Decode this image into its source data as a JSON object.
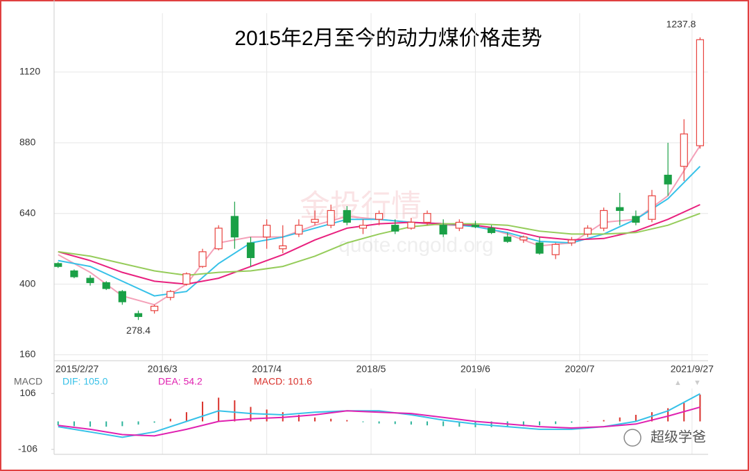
{
  "chart_data": [
    {
      "type": "candlestick",
      "title": "2015年2月至今的动力煤价格走势",
      "x": [
        0,
        2,
        4,
        6,
        8,
        10,
        12,
        14,
        16,
        18,
        20,
        22,
        24,
        26,
        28,
        30,
        32,
        34,
        36,
        38,
        40,
        42,
        44,
        46,
        48,
        50,
        52,
        54,
        56,
        58,
        60,
        62,
        64,
        66,
        68,
        70,
        72,
        74,
        76,
        78,
        80
      ],
      "open": [
        470,
        445,
        420,
        405,
        375,
        300,
        310,
        355,
        400,
        460,
        520,
        630,
        540,
        560,
        520,
        570,
        610,
        600,
        650,
        590,
        620,
        600,
        590,
        610,
        600,
        590,
        600,
        590,
        560,
        550,
        540,
        500,
        540,
        570,
        590,
        660,
        630,
        620,
        770,
        800,
        870
      ],
      "high": [
        475,
        450,
        430,
        410,
        380,
        310,
        330,
        380,
        440,
        520,
        600,
        680,
        560,
        620,
        600,
        620,
        650,
        670,
        665,
        620,
        650,
        620,
        625,
        650,
        620,
        620,
        615,
        600,
        575,
        565,
        560,
        540,
        560,
        600,
        660,
        710,
        650,
        720,
        880,
        960,
        1237.8
      ],
      "low": [
        455,
        420,
        395,
        380,
        330,
        278.4,
        300,
        345,
        395,
        455,
        515,
        520,
        460,
        520,
        505,
        560,
        600,
        590,
        600,
        570,
        600,
        570,
        585,
        600,
        560,
        580,
        590,
        570,
        540,
        540,
        500,
        485,
        530,
        560,
        580,
        600,
        600,
        610,
        700,
        750,
        860
      ],
      "close": [
        460,
        425,
        405,
        385,
        340,
        290,
        325,
        375,
        435,
        510,
        590,
        560,
        490,
        600,
        530,
        600,
        620,
        650,
        610,
        600,
        640,
        580,
        610,
        640,
        570,
        610,
        595,
        575,
        545,
        560,
        505,
        535,
        550,
        590,
        650,
        650,
        610,
        700,
        740,
        910,
        1230
      ],
      "up_color": "#e8413d",
      "down_color": "#1aa046",
      "series": [
        {
          "color": "#f4a0b8",
          "x": [
            0,
            4,
            8,
            12,
            16,
            20,
            24,
            28,
            32,
            36,
            40,
            44,
            48,
            52,
            56,
            60,
            64,
            68,
            72,
            76,
            80
          ],
          "values": [
            500,
            440,
            360,
            330,
            400,
            540,
            560,
            560,
            600,
            630,
            620,
            610,
            600,
            600,
            570,
            530,
            540,
            610,
            620,
            700,
            870
          ]
        },
        {
          "color": "#36c1e8",
          "x": [
            0,
            4,
            8,
            12,
            16,
            20,
            24,
            28,
            32,
            36,
            40,
            44,
            48,
            52,
            56,
            60,
            64,
            68,
            72,
            76,
            80
          ],
          "values": [
            480,
            460,
            410,
            360,
            375,
            470,
            540,
            560,
            590,
            620,
            620,
            610,
            605,
            595,
            575,
            545,
            540,
            570,
            620,
            690,
            800
          ]
        },
        {
          "color": "#e8207e",
          "x": [
            0,
            4,
            8,
            12,
            16,
            20,
            24,
            28,
            32,
            36,
            40,
            44,
            48,
            52,
            56,
            60,
            64,
            68,
            72,
            76,
            80
          ],
          "values": [
            510,
            480,
            440,
            410,
            400,
            420,
            460,
            500,
            550,
            590,
            605,
            610,
            605,
            600,
            585,
            560,
            550,
            555,
            580,
            620,
            670
          ]
        },
        {
          "color": "#95cc5a",
          "x": [
            0,
            4,
            8,
            12,
            16,
            20,
            24,
            28,
            32,
            36,
            40,
            44,
            48,
            52,
            56,
            60,
            64,
            68,
            72,
            76,
            80
          ],
          "values": [
            510,
            495,
            470,
            445,
            430,
            440,
            445,
            460,
            495,
            540,
            570,
            595,
            605,
            605,
            600,
            580,
            570,
            570,
            575,
            600,
            640
          ]
        }
      ],
      "ylim": [
        140,
        1320
      ],
      "yticks": [
        160,
        400,
        640,
        880,
        1120
      ],
      "xlim": [
        -0.5,
        81
      ],
      "xticks": [
        {
          "value": 0,
          "label": "2015/2/27"
        },
        {
          "value": 13,
          "label": "2016/3"
        },
        {
          "value": 26,
          "label": "2017/4"
        },
        {
          "value": 39,
          "label": "2018/5"
        },
        {
          "value": 52,
          "label": "2019/6"
        },
        {
          "value": 65,
          "label": "2020/7"
        },
        {
          "value": 79,
          "label": "2021/9/27"
        }
      ],
      "grid": true,
      "watermark": [
        "金投行情",
        "quote.cngold.org"
      ]
    },
    {
      "type": "macd",
      "label": "MACD",
      "x": [
        0,
        2,
        4,
        6,
        8,
        10,
        12,
        14,
        16,
        18,
        20,
        22,
        24,
        26,
        28,
        30,
        32,
        34,
        36,
        38,
        40,
        42,
        44,
        46,
        48,
        50,
        52,
        54,
        56,
        58,
        60,
        62,
        64,
        66,
        68,
        70,
        72,
        74,
        76,
        78,
        80
      ],
      "values": [
        -15,
        -18,
        -20,
        -20,
        -18,
        -12,
        -5,
        10,
        35,
        75,
        90,
        80,
        55,
        45,
        35,
        25,
        15,
        10,
        5,
        -3,
        -8,
        -10,
        -12,
        -15,
        -18,
        -20,
        -22,
        -22,
        -20,
        -18,
        -15,
        -10,
        -5,
        0,
        5,
        15,
        25,
        35,
        50,
        70,
        101.6
      ],
      "up_color": "#d9312b",
      "down_color": "#2bb39a",
      "series": [
        {
          "name": "DIF: 105.0",
          "color": "#36c1e8",
          "x": [
            0,
            4,
            8,
            12,
            16,
            20,
            24,
            28,
            32,
            36,
            40,
            44,
            48,
            52,
            56,
            60,
            64,
            68,
            72,
            76,
            80
          ],
          "values": [
            -20,
            -40,
            -60,
            -40,
            0,
            40,
            30,
            25,
            35,
            40,
            40,
            25,
            5,
            -10,
            -20,
            -30,
            -30,
            -20,
            0,
            40,
            105
          ]
        },
        {
          "name": "DEA: 54.2",
          "color": "#e020b0",
          "x": [
            0,
            4,
            8,
            12,
            16,
            20,
            24,
            28,
            32,
            36,
            40,
            44,
            48,
            52,
            56,
            60,
            64,
            68,
            72,
            76,
            80
          ],
          "values": [
            -15,
            -30,
            -50,
            -55,
            -30,
            0,
            10,
            15,
            25,
            40,
            35,
            30,
            15,
            0,
            -10,
            -20,
            -25,
            -20,
            -10,
            20,
            54.2
          ]
        }
      ],
      "bar_name": "MACD: 101.6",
      "ylim": [
        -125,
        125
      ],
      "yticks": [
        106,
        -106
      ],
      "xlim": [
        -0.5,
        81
      ]
    }
  ],
  "credit": "超级学爸"
}
